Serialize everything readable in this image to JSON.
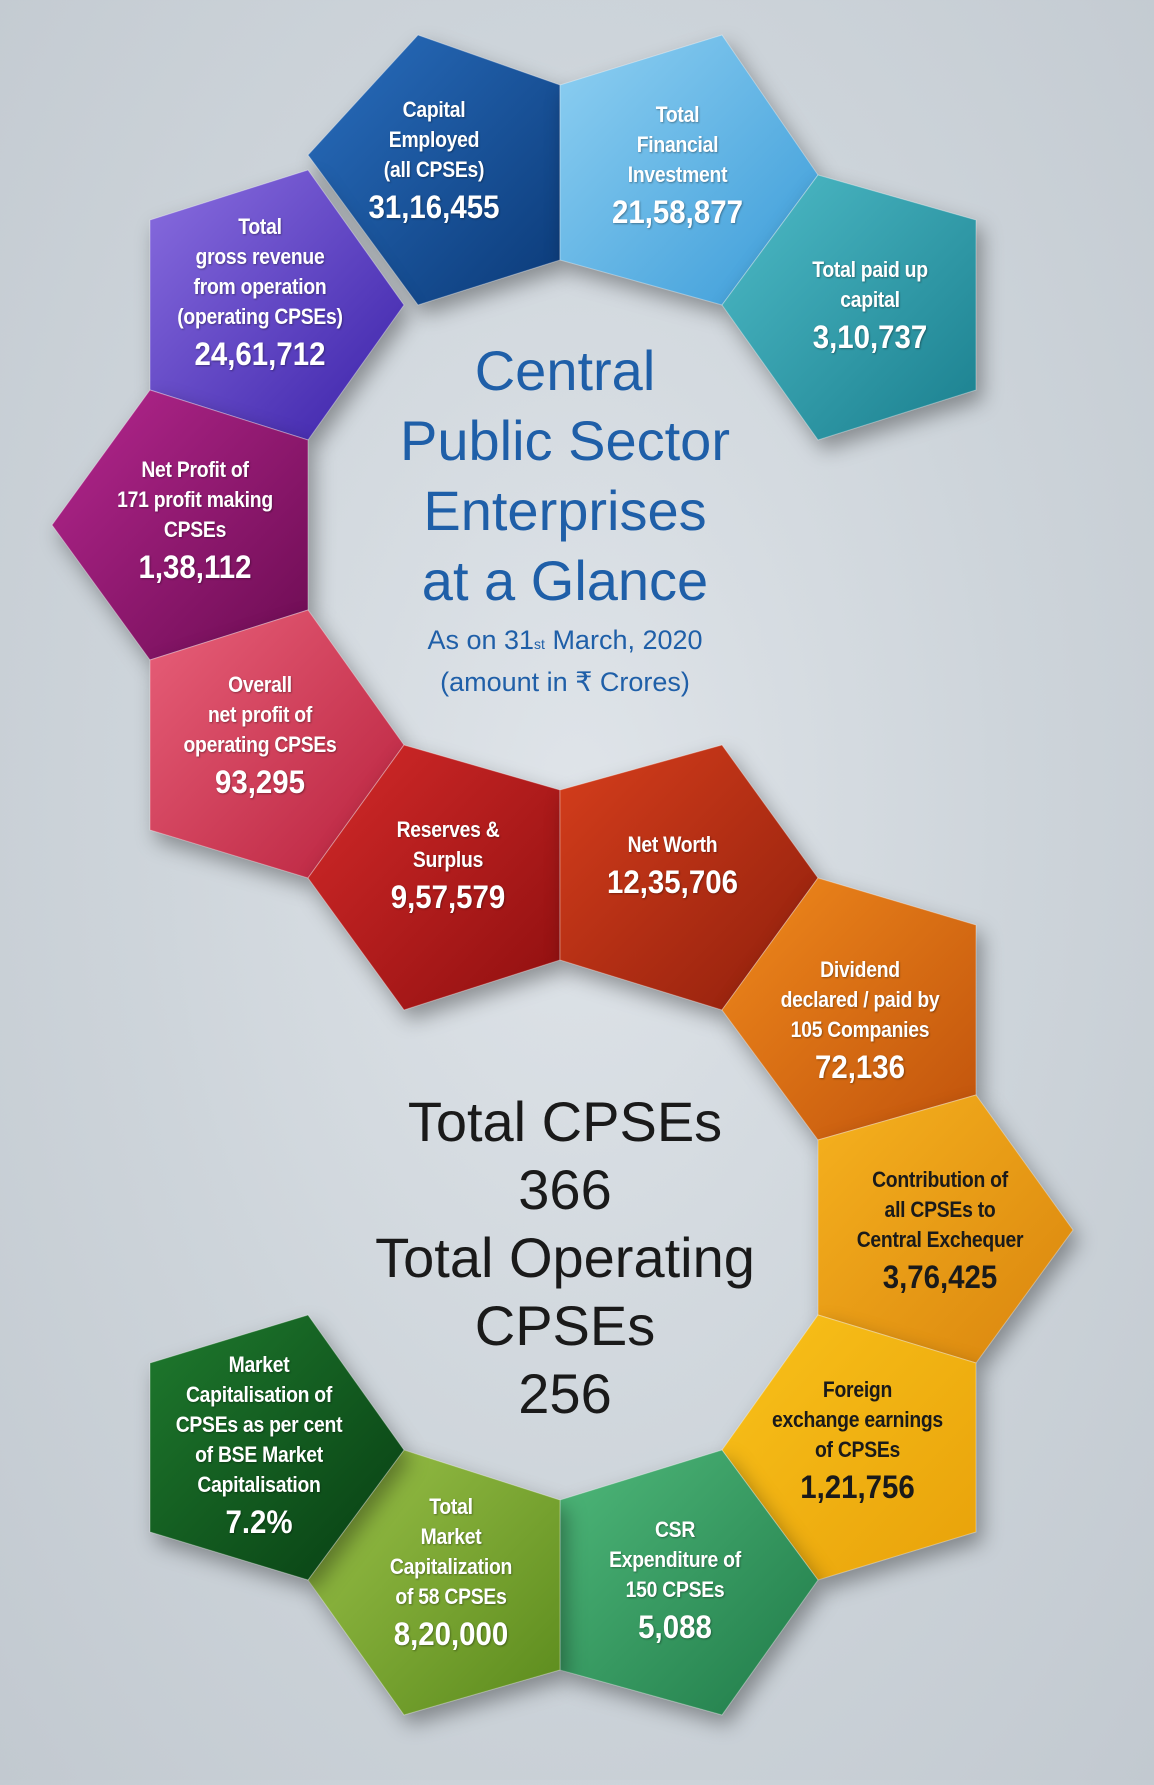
{
  "title": {
    "lines": [
      "Central",
      "Public Sector",
      "Enterprises",
      "at a Glance"
    ],
    "as_on_prefix": "As on 31",
    "as_on_sup": "st",
    "as_on_suffix": " March, 2020",
    "amount_note": "(amount in ₹ Crores)",
    "color": "#1f5fa8"
  },
  "totals": {
    "cpses_label": "Total CPSEs",
    "cpses_value": "366",
    "operating_label_1": "Total Operating",
    "operating_label_2": "CPSEs",
    "operating_value": "256"
  },
  "tiles": [
    {
      "id": "capital-employed",
      "label": [
        "Capital",
        "Employed",
        "(all CPSEs)"
      ],
      "value": "31,16,455",
      "color_light": "#2a6fbf",
      "color_dark": "#0b3a78"
    },
    {
      "id": "total-financial-investment",
      "label": [
        "Total",
        "Financial",
        "Investment"
      ],
      "value": "21,58,877",
      "color_light": "#8fd0f2",
      "color_dark": "#3a9bd8"
    },
    {
      "id": "total-paid-up-capital",
      "label": [
        "Total paid up",
        "capital"
      ],
      "value": "3,10,737",
      "color_light": "#4fbcc8",
      "color_dark": "#1a7f8e"
    },
    {
      "id": "total-gross-revenue",
      "label": [
        "Total",
        "gross revenue",
        "from operation",
        "(operating CPSEs)"
      ],
      "value": "24,61,712",
      "color_light": "#8a6ee0",
      "color_dark": "#3a21a8"
    },
    {
      "id": "net-profit-171",
      "label": [
        "Net Profit of",
        "171 profit making",
        "CPSEs"
      ],
      "value": "1,38,112",
      "color_light": "#b5278f",
      "color_dark": "#6c0c52"
    },
    {
      "id": "overall-net-profit",
      "label": [
        "Overall",
        "net profit of",
        "operating CPSEs"
      ],
      "value": "93,295",
      "color_light": "#e8607a",
      "color_dark": "#b8213c"
    },
    {
      "id": "reserves-surplus",
      "label": [
        "Reserves &",
        "Surplus"
      ],
      "value": "9,57,579",
      "color_light": "#d42a2a",
      "color_dark": "#8f0f0f"
    },
    {
      "id": "net-worth",
      "label": [
        "Net Worth"
      ],
      "value": "12,35,706",
      "color_light": "#d63e1c",
      "color_dark": "#8f1f0c"
    },
    {
      "id": "dividend",
      "label": [
        "Dividend",
        "declared / paid by",
        "105 Companies"
      ],
      "value": "72,136",
      "color_light": "#f08a1c",
      "color_dark": "#c0520c"
    },
    {
      "id": "contribution-exchequer",
      "label": [
        "Contribution of",
        "all CPSEs to",
        "Central Exchequer"
      ],
      "value": "3,76,425",
      "color_light": "#f6b21e",
      "color_dark": "#d9840e"
    },
    {
      "id": "foreign-exchange",
      "label": [
        "Foreign",
        "exchange earnings",
        "of CPSEs"
      ],
      "value": "1,21,756",
      "color_light": "#f9c21a",
      "color_dark": "#e8a10a"
    },
    {
      "id": "csr-expenditure",
      "label": [
        "CSR",
        "Expenditure of",
        "150 CPSEs"
      ],
      "value": "5,088",
      "color_light": "#4fb87a",
      "color_dark": "#1f7a48"
    },
    {
      "id": "total-market-cap",
      "label": [
        "Total",
        "Market",
        "Capitalization",
        "of 58 CPSEs"
      ],
      "value": "8,20,000",
      "color_light": "#9cc24a",
      "color_dark": "#5a8a1c"
    },
    {
      "id": "market-cap-percent",
      "label": [
        "Market",
        "Capitalisation of",
        "CPSEs as per cent",
        "of BSE Market",
        "Capitalisation"
      ],
      "value": "7.2%",
      "color_light": "#1f7a2e",
      "color_dark": "#073d12"
    }
  ]
}
